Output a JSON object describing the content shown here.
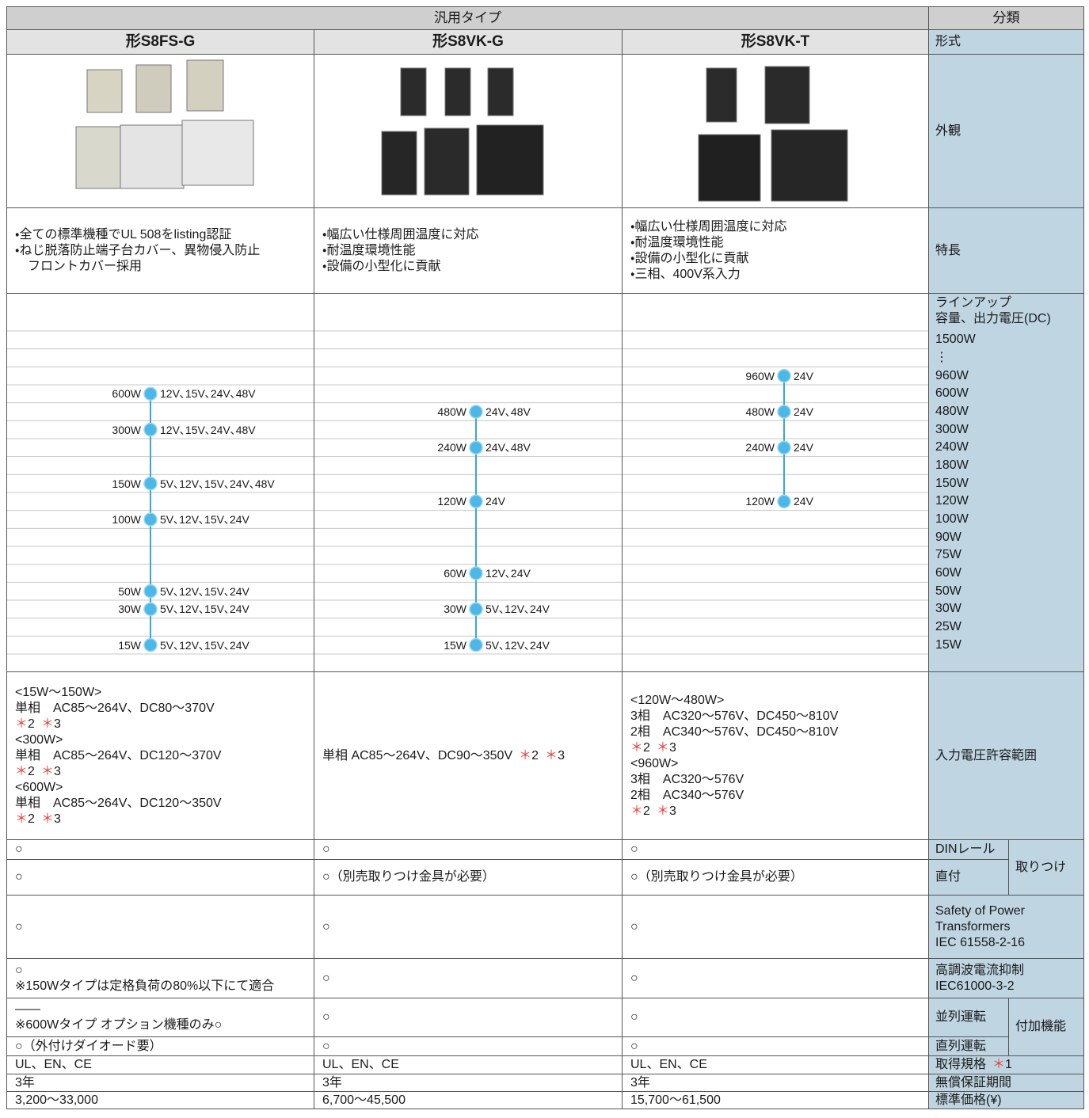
{
  "header": {
    "group": "汎用タイプ",
    "classification": "分類"
  },
  "models": {
    "label": "形式",
    "names": [
      "形S8FS-G",
      "形S8VK-G",
      "形S8VK-T"
    ]
  },
  "appearance": {
    "label": "外観"
  },
  "features": {
    "label": "特長",
    "cells": [
      [
        "・全ての標準機種でUL 508をlisting認証",
        "・ねじ脱落防止端子台カバー、異物侵入防止",
        "　フロントカバー採用"
      ],
      [
        "・幅広い仕様周囲温度に対応",
        "・耐温度環境性能",
        "・設備の小型化に貢献"
      ],
      [
        "・幅広い仕様周囲温度に対応",
        "・耐温度環境性能",
        "・設備の小型化に貢献",
        "・三相、400V系入力"
      ]
    ]
  },
  "lineup": {
    "title": "ラインアップ",
    "subtitle": "容量、出力電圧(DC)",
    "rows": [
      "1500W",
      "⋮",
      "960W",
      "600W",
      "480W",
      "300W",
      "240W",
      "180W",
      "150W",
      "120W",
      "100W",
      "90W",
      "75W",
      "60W",
      "50W",
      "30W",
      "25W",
      "15W"
    ],
    "columns": [
      [
        {
          "watt": "600W",
          "voltages": "12V､15V､24V､48V"
        },
        {
          "watt": "300W",
          "voltages": "12V､15V､24V､48V"
        },
        {
          "watt": "150W",
          "voltages": "5V､12V､15V､24V､48V"
        },
        {
          "watt": "100W",
          "voltages": "5V､12V､15V､24V"
        },
        {
          "watt": "50W",
          "voltages": "5V､12V､15V､24V"
        },
        {
          "watt": "30W",
          "voltages": "5V､12V､15V､24V"
        },
        {
          "watt": "15W",
          "voltages": "5V､12V､15V､24V"
        }
      ],
      [
        {
          "watt": "480W",
          "voltages": "24V､48V"
        },
        {
          "watt": "240W",
          "voltages": "24V､48V"
        },
        {
          "watt": "120W",
          "voltages": "24V"
        },
        {
          "watt": "60W",
          "voltages": "12V､24V"
        },
        {
          "watt": "30W",
          "voltages": "5V､12V､24V"
        },
        {
          "watt": "15W",
          "voltages": "5V､12V､24V"
        }
      ],
      [
        {
          "watt": "960W",
          "voltages": "24V"
        },
        {
          "watt": "480W",
          "voltages": "24V"
        },
        {
          "watt": "240W",
          "voltages": "24V"
        },
        {
          "watt": "120W",
          "voltages": "24V"
        }
      ]
    ]
  },
  "note_mark": "＊",
  "note_color": "#e8413c",
  "input": {
    "label": "入力電圧許容範囲",
    "cells": [
      [
        {
          "text": "<15W～150W>"
        },
        {
          "text": "単相　AC85～264V、DC80～370V"
        },
        {
          "notes": [
            "2",
            "3"
          ]
        },
        {
          "text": "<300W>"
        },
        {
          "text": "単相　AC85～264V、DC120～370V"
        },
        {
          "notes": [
            "2",
            "3"
          ]
        },
        {
          "text": "<600W>"
        },
        {
          "text": "単相　AC85～264V、DC120～350V"
        },
        {
          "notes": [
            "2",
            "3"
          ]
        }
      ],
      [
        {
          "text": "単相 AC85～264V、DC90～350V",
          "notes": [
            "2",
            "3"
          ]
        }
      ],
      [
        {
          "text": "<120W～480W>"
        },
        {
          "text": "3相　AC320～576V、DC450～810V"
        },
        {
          "text": "2相　AC340～576V、DC450～810V"
        },
        {
          "notes": [
            "2",
            "3"
          ]
        },
        {
          "text": "<960W>"
        },
        {
          "text": "3相　AC320～576V"
        },
        {
          "text": "2相　AC340～576V"
        },
        {
          "notes": [
            "2",
            "3"
          ]
        }
      ]
    ]
  },
  "mounting": {
    "label": "取りつけ",
    "rows": [
      {
        "label": "DINレール",
        "cells": [
          "○",
          "○",
          "○"
        ]
      },
      {
        "label": "直付",
        "cells": [
          "○",
          "○（別売取りつけ金具が必要）",
          "○（別売取りつけ金具が必要）"
        ]
      }
    ]
  },
  "safety": {
    "label": [
      "Safety of Power",
      "Transformers",
      "IEC 61558-2-16"
    ],
    "cells": [
      [
        "○"
      ],
      [
        "○"
      ],
      [
        "○"
      ]
    ]
  },
  "harmonic": {
    "label": [
      "高調波電流抑制",
      "IEC61000-3-2"
    ],
    "cells": [
      [
        "○",
        "※150Wタイプは定格負荷の80%以下にて適合"
      ],
      [
        "○"
      ],
      [
        "○"
      ]
    ]
  },
  "functions": {
    "label": "付加機能",
    "rows": [
      {
        "label": "並列運転",
        "cells": [
          [
            "——",
            "※600Wタイプ オプション機種のみ○"
          ],
          [
            "○"
          ],
          [
            "○"
          ]
        ]
      },
      {
        "label": "直列運転",
        "cells": [
          [
            "○（外付けダイオード要）"
          ],
          [
            "○"
          ],
          [
            "○"
          ]
        ]
      }
    ]
  },
  "certification": {
    "label": {
      "text": "取得規格",
      "notes": [
        "1"
      ]
    },
    "cells": [
      "UL、EN、CE",
      "UL、EN、CE",
      "UL、EN、CE"
    ]
  },
  "warranty": {
    "label": "無償保証期間",
    "cells": [
      "3年",
      "3年",
      "3年"
    ]
  },
  "price": {
    "label": "標準価格(¥)",
    "cells": [
      "3,200～33,000",
      "6,700～45,500",
      "15,700～61,500"
    ]
  }
}
